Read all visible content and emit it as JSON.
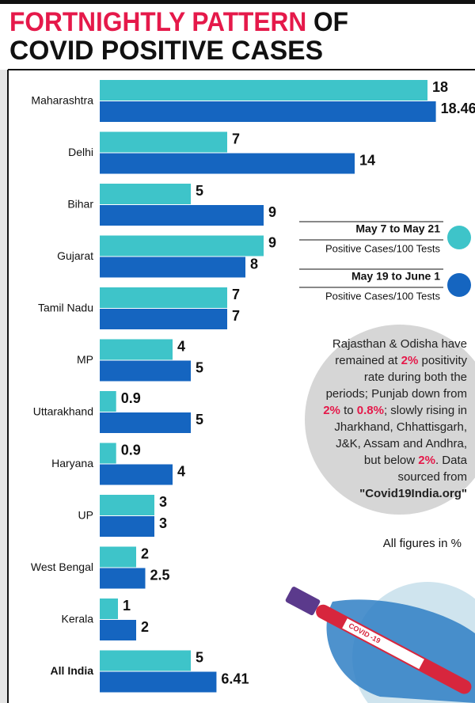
{
  "chart_data": {
    "type": "bar",
    "orientation": "horizontal",
    "title": [
      "FORTNIGHTLY PATTERN",
      "OF",
      "COVID POSITIVE CASES"
    ],
    "categories": [
      "Maharashtra",
      "Delhi",
      "Bihar",
      "Gujarat",
      "Tamil Nadu",
      "MP",
      "Uttarakhand",
      "Haryana",
      "UP",
      "West Bengal",
      "Kerala",
      "All India"
    ],
    "series": [
      {
        "name": "May 7 to May 21",
        "color": "#3ec4c9",
        "values": [
          18,
          7,
          5,
          9,
          7,
          4,
          0.9,
          0.9,
          3,
          2,
          1,
          5
        ]
      },
      {
        "name": "May 19 to June 1",
        "color": "#1565c0",
        "values": [
          18.46,
          14,
          9,
          8,
          7,
          5,
          5,
          4,
          3,
          2.5,
          2,
          6.41
        ]
      }
    ],
    "legend_note": "Positive Cases/100 Tests",
    "annotation": [
      {
        "text": "Rajasthan & Odisha have remained at "
      },
      {
        "text": "2%",
        "highlight": true
      },
      {
        "text": " positivity rate during both the periods; Punjab down from "
      },
      {
        "text": "2%",
        "highlight": true
      },
      {
        "text": " to "
      },
      {
        "text": "0.8%",
        "highlight": true
      },
      {
        "text": "; slowly rising in Jharkhand, Chhattisgarh, J&K, Assam and Andhra, but below "
      },
      {
        "text": "2%",
        "highlight": true
      },
      {
        "text": ". Data sourced from "
      },
      {
        "text": "\"Covid19India.org\"",
        "bold": true
      }
    ],
    "note": "All figures in %",
    "vial_label": "COVID -19"
  }
}
